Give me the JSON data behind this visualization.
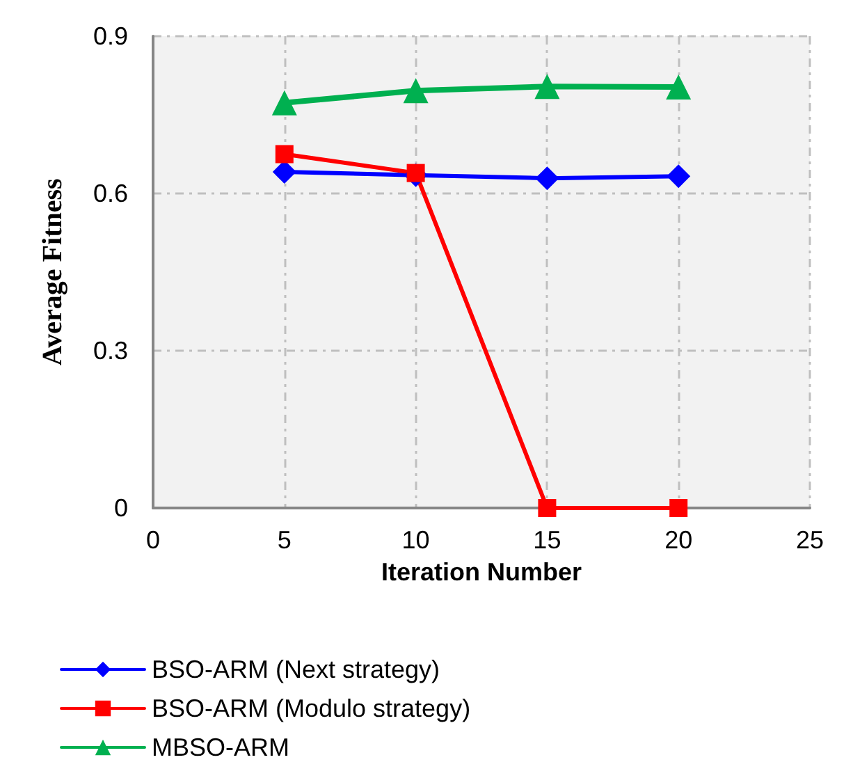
{
  "chart_data": {
    "type": "line",
    "xlabel": "Iteration Number",
    "ylabel": "Average Fitness",
    "x": [
      5,
      10,
      15,
      20
    ],
    "series": [
      {
        "name": "BSO-ARM (Next strategy)",
        "color": "#0000ff",
        "marker": "diamond",
        "values": [
          0.641,
          0.635,
          0.629,
          0.633
        ]
      },
      {
        "name": "BSO-ARM (Modulo strategy)",
        "color": "#ff0000",
        "marker": "square",
        "values": [
          0.675,
          0.639,
          0,
          0
        ]
      },
      {
        "name": "MBSO-ARM",
        "color": "#00b050",
        "marker": "triangle",
        "values": [
          0.773,
          0.796,
          0.804,
          0.803
        ]
      }
    ],
    "xlim": [
      0,
      25
    ],
    "xticks": [
      0,
      5,
      10,
      15,
      20,
      25
    ],
    "ylim": [
      0,
      0.9
    ],
    "yticks": [
      0,
      0.3,
      0.6,
      0.9
    ],
    "grid": true,
    "legend": "bottom",
    "line_style": "solid"
  }
}
